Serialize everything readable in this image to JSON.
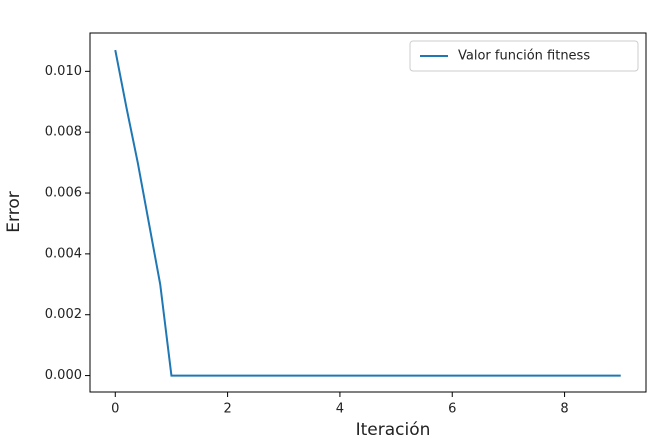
{
  "chart_data": {
    "type": "line",
    "xlabel": "Iteración",
    "ylabel": "Error",
    "x": [
      0,
      0.2,
      0.4,
      0.6,
      0.8,
      1,
      2,
      3,
      4,
      5,
      6,
      7,
      8,
      9
    ],
    "series": [
      {
        "name": "Valor función fitness",
        "color": "#1f77b4",
        "values": [
          0.0107,
          0.0088,
          0.007,
          0.005,
          0.003,
          0,
          0,
          0,
          0,
          0,
          0,
          0,
          0,
          0
        ]
      }
    ],
    "xlim": [
      -0.45,
      9.45
    ],
    "ylim": [
      -0.00054,
      0.01126
    ],
    "xticks": [
      0,
      2,
      4,
      6,
      8
    ],
    "yticks": [
      {
        "value": 0,
        "label": "0.000"
      },
      {
        "value": 0.002,
        "label": "0.002"
      },
      {
        "value": 0.004,
        "label": "0.004"
      },
      {
        "value": 0.006,
        "label": "0.006"
      },
      {
        "value": 0.008,
        "label": "0.008"
      },
      {
        "value": 0.01,
        "label": "0.010"
      }
    ],
    "legend": "upper right",
    "grid": false
  }
}
